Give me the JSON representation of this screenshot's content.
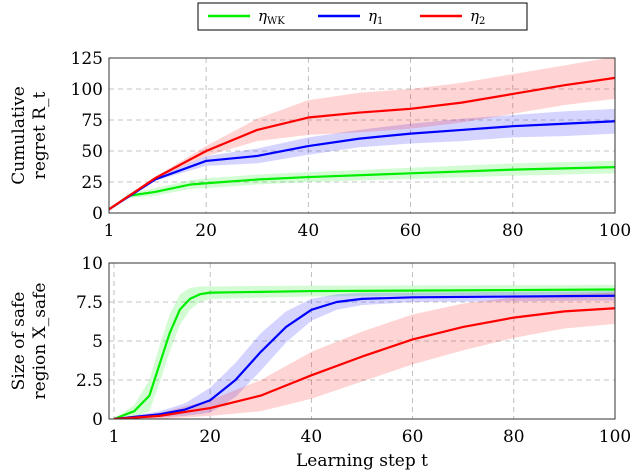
{
  "legend": [
    {
      "label": "η",
      "sub": "WK",
      "color": "#00ee00"
    },
    {
      "label": "η",
      "sub": "1",
      "color": "#0000ff"
    },
    {
      "label": "η",
      "sub": "2",
      "color": "#ff0000"
    }
  ],
  "chart_data": [
    {
      "type": "line",
      "ylabel_lines": [
        "Cumulative",
        "regret R_t"
      ],
      "xlabel": "",
      "xlim": [
        1,
        100
      ],
      "ylim": [
        0,
        125
      ],
      "xticks": [
        "1",
        "20",
        "40",
        "60",
        "80",
        "100"
      ],
      "xtick_values": [
        1,
        20,
        40,
        60,
        80,
        100
      ],
      "yticks": [
        "0",
        "25",
        "50",
        "75",
        "100",
        "125"
      ],
      "ytick_values": [
        0,
        25,
        50,
        75,
        100,
        125
      ],
      "grid": true,
      "series": [
        {
          "name": "ηWK",
          "color": "#00ee00",
          "x": [
            1,
            5,
            10,
            17,
            20,
            30,
            40,
            60,
            80,
            100
          ],
          "y": [
            3,
            14,
            17,
            23,
            24,
            27,
            29,
            32,
            35,
            37
          ],
          "spread": [
            0,
            2,
            3,
            3.5,
            4,
            4,
            4,
            4.5,
            5,
            5
          ]
        },
        {
          "name": "η1",
          "color": "#0000ff",
          "x": [
            1,
            10,
            20,
            30,
            40,
            50,
            60,
            70,
            80,
            90,
            100
          ],
          "y": [
            3,
            27,
            42,
            46,
            54,
            60,
            64,
            67,
            70,
            72,
            74
          ],
          "spread": [
            0,
            1,
            4,
            6,
            7,
            7,
            8,
            9,
            9,
            10,
            10
          ]
        },
        {
          "name": "η2",
          "color": "#ff0000",
          "x": [
            1,
            10,
            20,
            30,
            40,
            50,
            60,
            70,
            80,
            90,
            100
          ],
          "y": [
            3,
            28,
            50,
            67,
            77,
            81,
            84,
            89,
            96,
            103,
            109
          ],
          "spread": [
            0,
            1,
            4,
            9,
            14,
            16,
            16,
            16,
            16,
            16,
            17
          ]
        }
      ]
    },
    {
      "type": "line",
      "ylabel_lines": [
        "Size of safe",
        "region X_safe"
      ],
      "xlabel": "Learning step t",
      "xlim": [
        1,
        100
      ],
      "ylim": [
        0,
        10
      ],
      "xticks": [
        "1",
        "20",
        "40",
        "60",
        "80",
        "100"
      ],
      "xtick_values": [
        1,
        20,
        40,
        60,
        80,
        100
      ],
      "yticks": [
        "0",
        "2.5",
        "5",
        "7.5",
        "10"
      ],
      "ytick_values": [
        0,
        2.5,
        5,
        7.5,
        10
      ],
      "grid": true,
      "series": [
        {
          "name": "ηWK",
          "color": "#00ee00",
          "x": [
            1,
            5,
            8,
            10,
            12,
            14,
            16,
            18,
            20,
            40,
            100
          ],
          "y": [
            0,
            0.5,
            1.5,
            3.5,
            5.5,
            7,
            7.7,
            8,
            8.1,
            8.2,
            8.3
          ],
          "spread": [
            0,
            0.4,
            1,
            1.2,
            1.2,
            1,
            0.7,
            0.5,
            0.4,
            0.35,
            0.3
          ]
        },
        {
          "name": "η1",
          "color": "#0000ff",
          "x": [
            1,
            10,
            15,
            20,
            25,
            30,
            35,
            40,
            45,
            50,
            60,
            100
          ],
          "y": [
            0,
            0.3,
            0.6,
            1.2,
            2.5,
            4.3,
            5.9,
            7,
            7.5,
            7.7,
            7.8,
            7.9
          ],
          "spread": [
            0,
            0.2,
            0.4,
            0.8,
            1.1,
            1.2,
            1,
            0.7,
            0.5,
            0.4,
            0.3,
            0.3
          ]
        },
        {
          "name": "η2",
          "color": "#ff0000",
          "x": [
            1,
            10,
            20,
            30,
            40,
            50,
            60,
            70,
            80,
            90,
            100
          ],
          "y": [
            0,
            0.2,
            0.7,
            1.5,
            2.8,
            4,
            5.1,
            5.9,
            6.5,
            6.9,
            7.1
          ],
          "spread": [
            0,
            0.2,
            0.5,
            1,
            1.5,
            1.6,
            1.6,
            1.5,
            1.3,
            1.1,
            1
          ]
        }
      ]
    }
  ]
}
